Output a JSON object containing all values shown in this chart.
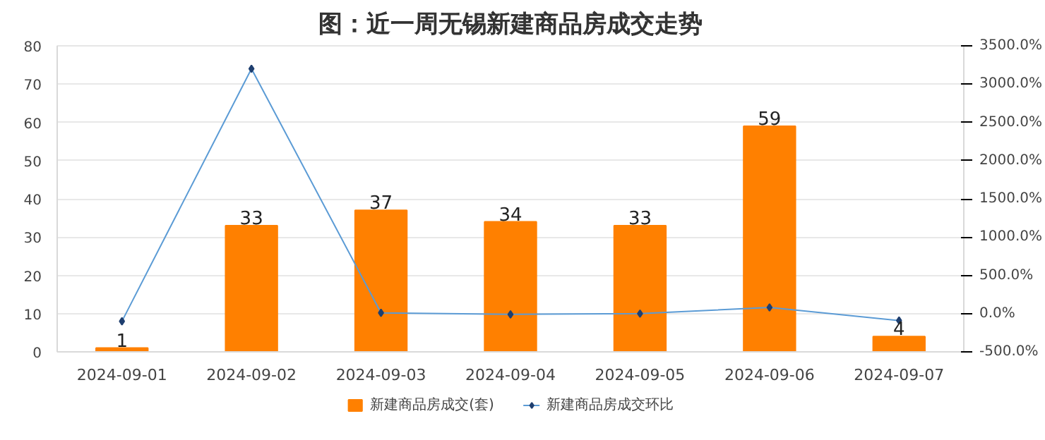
{
  "chart_data": {
    "type": "bar",
    "title": "图：近一周无锡新建商品房成交走势",
    "categories": [
      "2024-09-01",
      "2024-09-02",
      "2024-09-03",
      "2024-09-04",
      "2024-09-05",
      "2024-09-06",
      "2024-09-07"
    ],
    "series": [
      {
        "name": "新建商品房成交(套)",
        "color": "#ff8000",
        "values": [
          1,
          33,
          37,
          34,
          33,
          59,
          4
        ],
        "data_labels": true
      },
      {
        "name": "新建商品房成交环比",
        "type": "line",
        "axis": "y2",
        "color": "#5b9bd5",
        "marker": "diamond",
        "values": [
          -100,
          3200,
          10,
          -10,
          0,
          80,
          -90
        ]
      }
    ],
    "ylim": [
      0,
      80
    ],
    "yticks": [
      0,
      10,
      20,
      30,
      40,
      50,
      60,
      70,
      80
    ],
    "y2lim": [
      -500,
      3500
    ],
    "y2ticks": [
      {
        "value": -500,
        "label": "-500.0%"
      },
      {
        "value": 0,
        "label": "0.0%"
      },
      {
        "value": 500,
        "label": "500.0%"
      },
      {
        "value": 1000,
        "label": "1000.0%"
      },
      {
        "value": 1500,
        "label": "1500.0%"
      },
      {
        "value": 2000,
        "label": "2000.0%"
      },
      {
        "value": 2500,
        "label": "2500.0%"
      },
      {
        "value": 3000,
        "label": "3000.0%"
      },
      {
        "value": 3500,
        "label": "3500.0%"
      }
    ],
    "grid": "y",
    "legend": "bottom"
  }
}
